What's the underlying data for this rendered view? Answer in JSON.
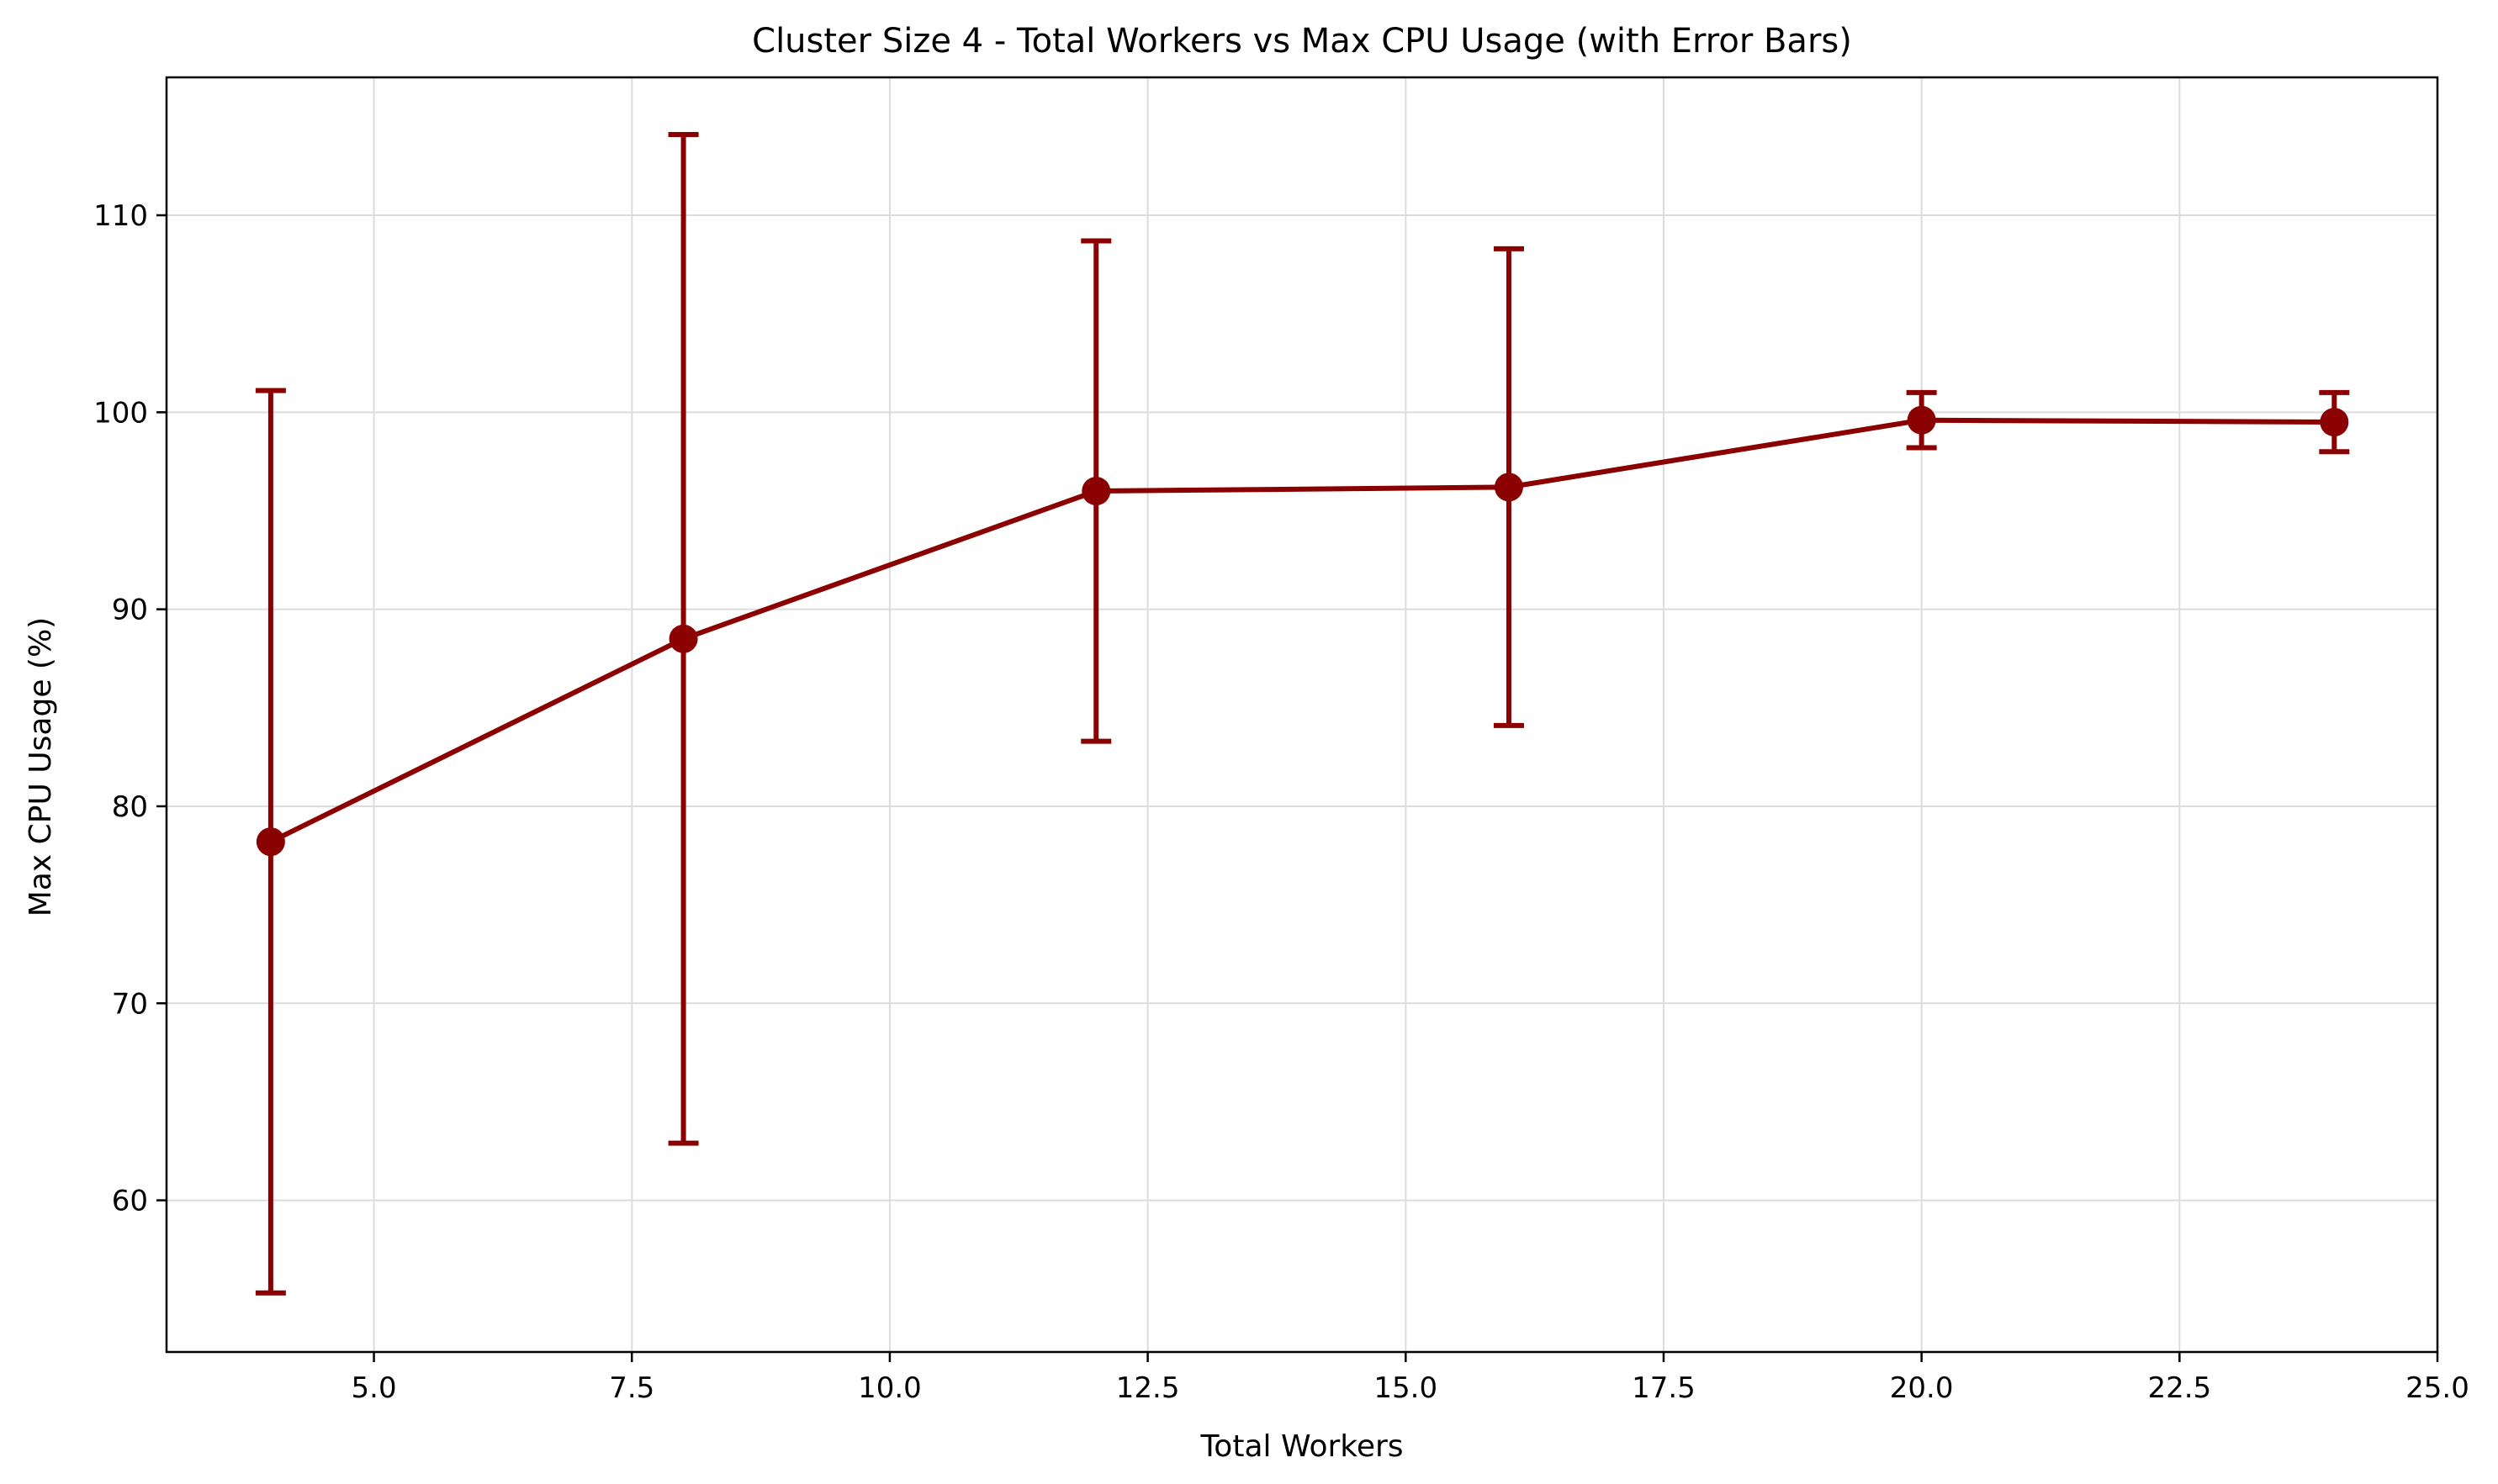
{
  "chart_data": {
    "type": "line",
    "title": "Cluster Size 4 - Total Workers vs Max CPU Usage (with Error Bars)",
    "xlabel": "Total Workers",
    "ylabel": "Max CPU Usage (%)",
    "xlim": [
      2.99,
      25.0
    ],
    "ylim": [
      52.3,
      117.0
    ],
    "xticks": [
      5.0,
      7.5,
      10.0,
      12.5,
      15.0,
      17.5,
      20.0,
      22.5,
      25.0
    ],
    "xtick_labels": [
      "5.0",
      "7.5",
      "10.0",
      "12.5",
      "15.0",
      "17.5",
      "20.0",
      "22.5",
      "25.0"
    ],
    "yticks": [
      60,
      70,
      80,
      90,
      100,
      110
    ],
    "ytick_labels": [
      "60",
      "70",
      "80",
      "90",
      "100",
      "110"
    ],
    "grid": true,
    "color": "#8b0000",
    "series": [
      {
        "x": [
          4,
          8,
          12,
          16,
          20,
          24
        ],
        "y": [
          78.2,
          88.5,
          96.0,
          96.2,
          99.6,
          99.5
        ],
        "error": [
          22.9,
          25.6,
          12.7,
          12.1,
          1.4,
          1.5
        ]
      }
    ]
  }
}
